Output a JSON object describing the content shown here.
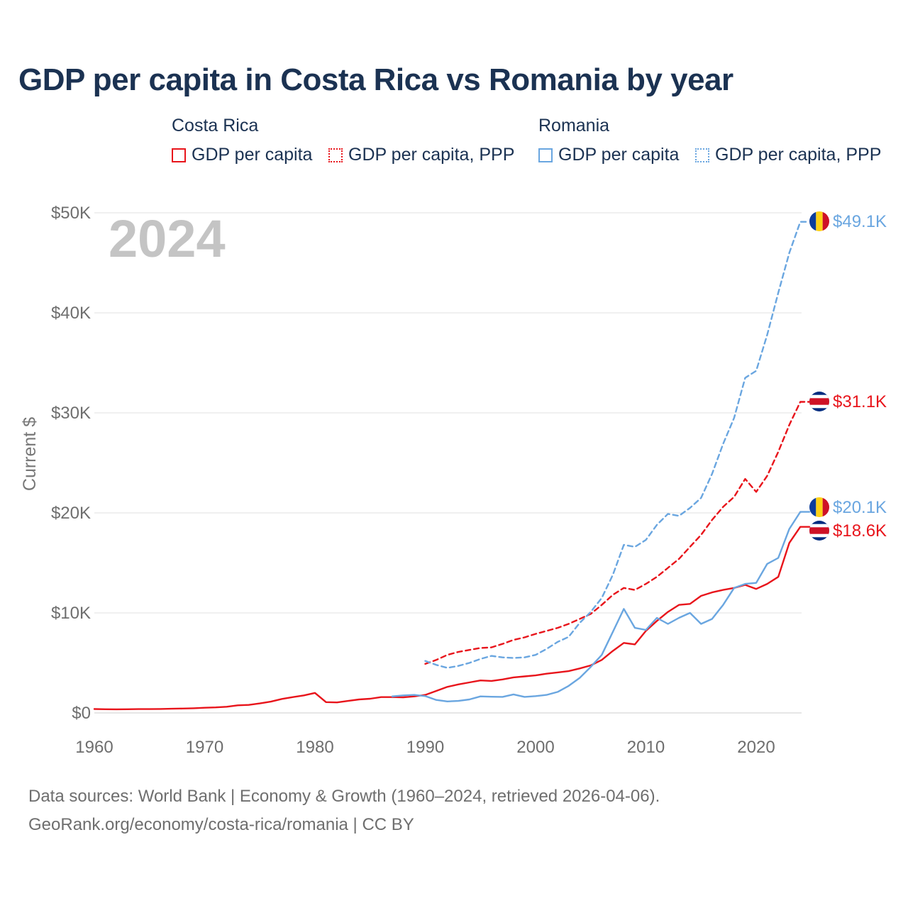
{
  "title": "GDP per capita in Costa Rica vs Romania by year",
  "legend": {
    "groups": [
      {
        "name": "Costa Rica",
        "items": [
          "GDP per capita",
          "GDP per capita, PPP"
        ],
        "color": "#e8141b"
      },
      {
        "name": "Romania",
        "items": [
          "GDP per capita",
          "GDP per capita, PPP"
        ],
        "color": "#6aa6e0"
      }
    ]
  },
  "year_watermark": "2024",
  "chart_data": {
    "type": "line",
    "title": "GDP per capita in Costa Rica vs Romania by year",
    "xlabel": "",
    "ylabel": "Current $",
    "xlim": [
      1960,
      2025
    ],
    "ylim": [
      0,
      50000
    ],
    "x_ticks": [
      1960,
      1970,
      1980,
      1990,
      2000,
      2010,
      2020
    ],
    "x_tick_labels": [
      "1960",
      "1970",
      "1980",
      "1990",
      "2000",
      "2010",
      "2020"
    ],
    "y_ticks": [
      0,
      10000,
      20000,
      30000,
      40000,
      50000
    ],
    "y_tick_labels": [
      "$0",
      "$10K",
      "$20K",
      "$30K",
      "$40K",
      "$50K"
    ],
    "grid": true,
    "series": [
      {
        "name": "Costa Rica GDP per capita",
        "color": "#e8141b",
        "dash": "solid",
        "end_label": "$18.6K",
        "x": [
          1960,
          1961,
          1962,
          1963,
          1964,
          1965,
          1966,
          1967,
          1968,
          1969,
          1970,
          1971,
          1972,
          1973,
          1974,
          1975,
          1976,
          1977,
          1978,
          1979,
          1980,
          1981,
          1982,
          1983,
          1984,
          1985,
          1986,
          1987,
          1988,
          1989,
          1990,
          1991,
          1992,
          1993,
          1994,
          1995,
          1996,
          1997,
          1998,
          1999,
          2000,
          2001,
          2002,
          2003,
          2004,
          2005,
          2006,
          2007,
          2008,
          2009,
          2010,
          2011,
          2012,
          2013,
          2014,
          2015,
          2016,
          2017,
          2018,
          2019,
          2020,
          2021,
          2022,
          2023,
          2024
        ],
        "y": [
          390,
          370,
          360,
          370,
          380,
          380,
          400,
          420,
          440,
          470,
          520,
          550,
          620,
          760,
          800,
          950,
          1130,
          1400,
          1580,
          1750,
          2000,
          1080,
          1050,
          1200,
          1350,
          1420,
          1580,
          1580,
          1560,
          1650,
          1800,
          2200,
          2600,
          2850,
          3050,
          3250,
          3200,
          3350,
          3550,
          3650,
          3750,
          3920,
          4050,
          4180,
          4450,
          4750,
          5300,
          6200,
          7000,
          6850,
          8200,
          9200,
          10100,
          10800,
          10900,
          11700,
          12050,
          12300,
          12500,
          12800,
          12400,
          12900,
          13600,
          17000,
          18600
        ]
      },
      {
        "name": "Costa Rica GDP per capita, PPP",
        "color": "#e8141b",
        "dash": "dashed",
        "end_label": "$31.1K",
        "x": [
          1990,
          1991,
          1992,
          1993,
          1994,
          1995,
          1996,
          1997,
          1998,
          1999,
          2000,
          2001,
          2002,
          2003,
          2004,
          2005,
          2006,
          2007,
          2008,
          2009,
          2010,
          2011,
          2012,
          2013,
          2014,
          2015,
          2016,
          2017,
          2018,
          2019,
          2020,
          2021,
          2022,
          2023,
          2024
        ],
        "y": [
          4900,
          5300,
          5800,
          6100,
          6300,
          6500,
          6550,
          6900,
          7300,
          7550,
          7900,
          8200,
          8500,
          8900,
          9400,
          9900,
          10800,
          11800,
          12500,
          12300,
          12900,
          13600,
          14500,
          15400,
          16600,
          17800,
          19300,
          20600,
          21600,
          23400,
          22100,
          23700,
          26100,
          28800,
          31100
        ]
      },
      {
        "name": "Romania GDP per capita",
        "color": "#6aa6e0",
        "dash": "solid",
        "end_label": "$20.1K",
        "x": [
          1987,
          1988,
          1989,
          1990,
          1991,
          1992,
          1993,
          1994,
          1995,
          1996,
          1997,
          1998,
          1999,
          2000,
          2001,
          2002,
          2003,
          2004,
          2005,
          2006,
          2007,
          2008,
          2009,
          2010,
          2011,
          2012,
          2013,
          2014,
          2015,
          2016,
          2017,
          2018,
          2019,
          2020,
          2021,
          2022,
          2023,
          2024
        ],
        "y": [
          1650,
          1750,
          1800,
          1680,
          1300,
          1150,
          1200,
          1350,
          1650,
          1620,
          1600,
          1850,
          1600,
          1680,
          1800,
          2100,
          2700,
          3500,
          4600,
          5800,
          8100,
          10400,
          8500,
          8300,
          9500,
          8900,
          9500,
          10000,
          8900,
          9400,
          10800,
          12500,
          12900,
          13000,
          14900,
          15500,
          18400,
          20100
        ]
      },
      {
        "name": "Romania GDP per capita, PPP",
        "color": "#6aa6e0",
        "dash": "dashed",
        "end_label": "$49.1K",
        "x": [
          1990,
          1991,
          1992,
          1993,
          1994,
          1995,
          1996,
          1997,
          1998,
          1999,
          2000,
          2001,
          2002,
          2003,
          2004,
          2005,
          2006,
          2007,
          2008,
          2009,
          2010,
          2011,
          2012,
          2013,
          2014,
          2015,
          2016,
          2017,
          2018,
          2019,
          2020,
          2021,
          2022,
          2023,
          2024
        ],
        "y": [
          5200,
          4800,
          4500,
          4700,
          5000,
          5400,
          5700,
          5550,
          5500,
          5550,
          5800,
          6400,
          7100,
          7600,
          9000,
          10100,
          11500,
          13800,
          16800,
          16600,
          17300,
          18800,
          19900,
          19700,
          20500,
          21500,
          23900,
          26900,
          29500,
          33500,
          34200,
          37800,
          42000,
          46000,
          49100
        ]
      }
    ]
  },
  "footer": {
    "line1": "Data sources: World Bank | Economy & Growth (1960–2024, retrieved 2026-04-06).",
    "line2": "GeoRank.org/economy/costa-rica/romania | CC BY"
  }
}
